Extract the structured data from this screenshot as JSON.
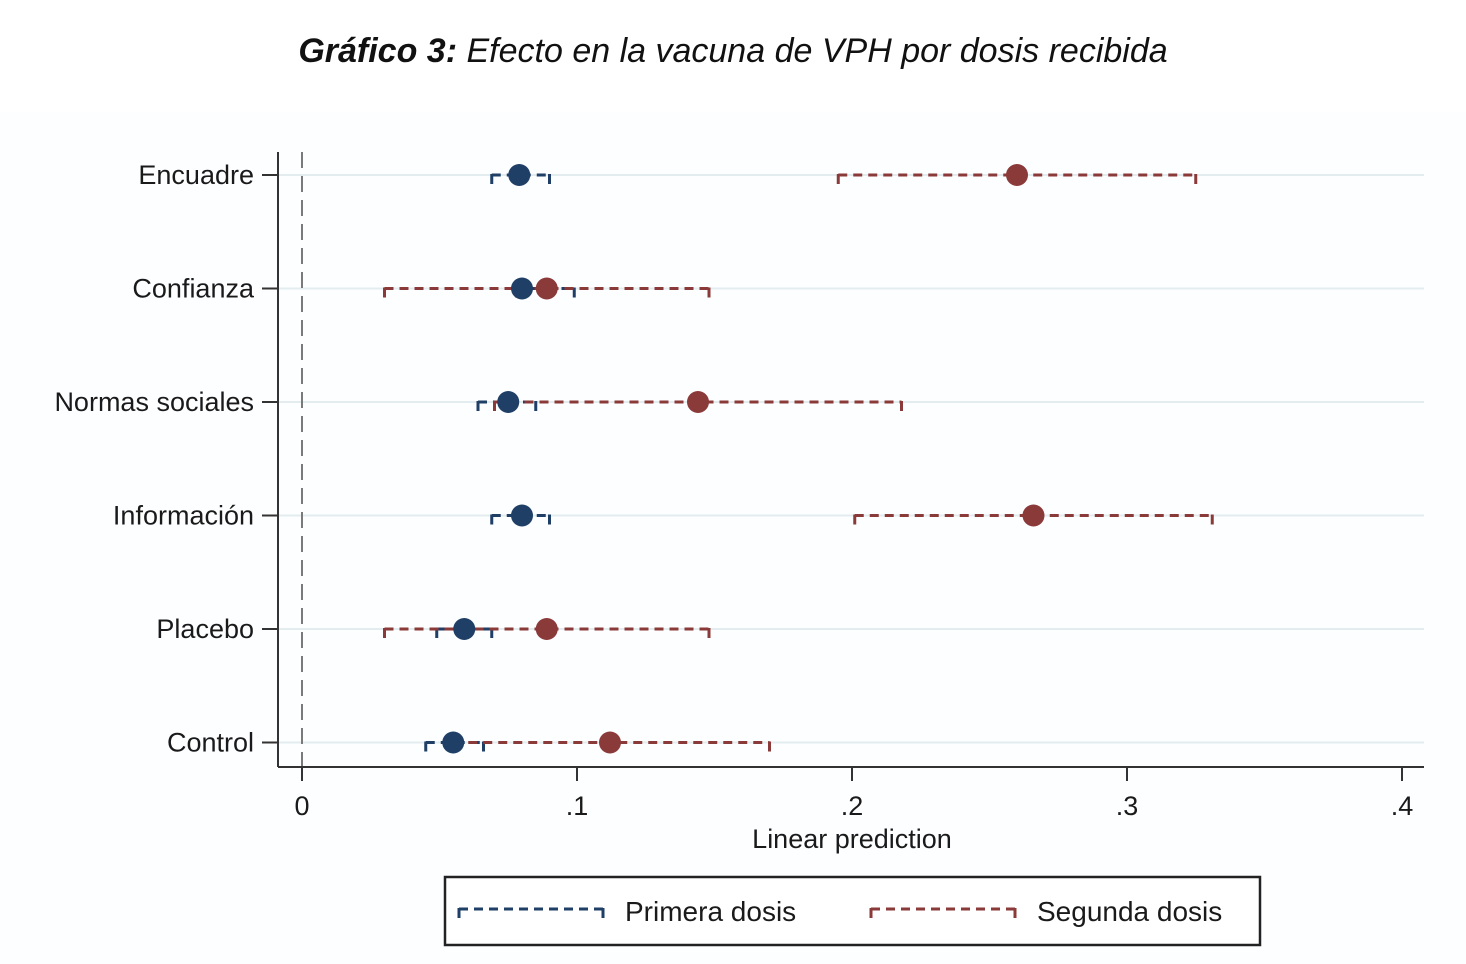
{
  "title": {
    "bold": "Gráfico 3:",
    "rest": " Efecto en la vacuna de VPH por dosis recibida"
  },
  "chart_data": {
    "type": "scatter",
    "orientation": "horizontal",
    "error_bars": true,
    "categories": [
      "Encuadre",
      "Confianza",
      "Normas sociales",
      "Información",
      "Placebo",
      "Control"
    ],
    "xlabel": "Linear prediction",
    "ylabel": "",
    "xlim": [
      0,
      0.4
    ],
    "xticks": [
      0,
      0.1,
      0.2,
      0.3,
      0.4
    ],
    "xtick_labels": [
      "0",
      ".1",
      ".2",
      ".3",
      ".4"
    ],
    "reference_line": 0,
    "grid": "horizontal",
    "legend_position": "bottom",
    "series": [
      {
        "name": "Primera dosis",
        "color": "#1f3f66",
        "values": [
          0.079,
          0.08,
          0.075,
          0.08,
          0.059,
          0.055
        ],
        "lower": [
          0.069,
          0.078,
          0.064,
          0.069,
          0.049,
          0.045
        ],
        "upper": [
          0.09,
          0.099,
          0.085,
          0.09,
          0.069,
          0.066
        ]
      },
      {
        "name": "Segunda dosis",
        "color": "#8b3a3a",
        "values": [
          0.26,
          0.089,
          0.144,
          0.266,
          0.089,
          0.112
        ],
        "lower": [
          0.195,
          0.03,
          0.07,
          0.201,
          0.03,
          0.055
        ],
        "upper": [
          0.325,
          0.148,
          0.218,
          0.331,
          0.148,
          0.17
        ]
      }
    ]
  }
}
